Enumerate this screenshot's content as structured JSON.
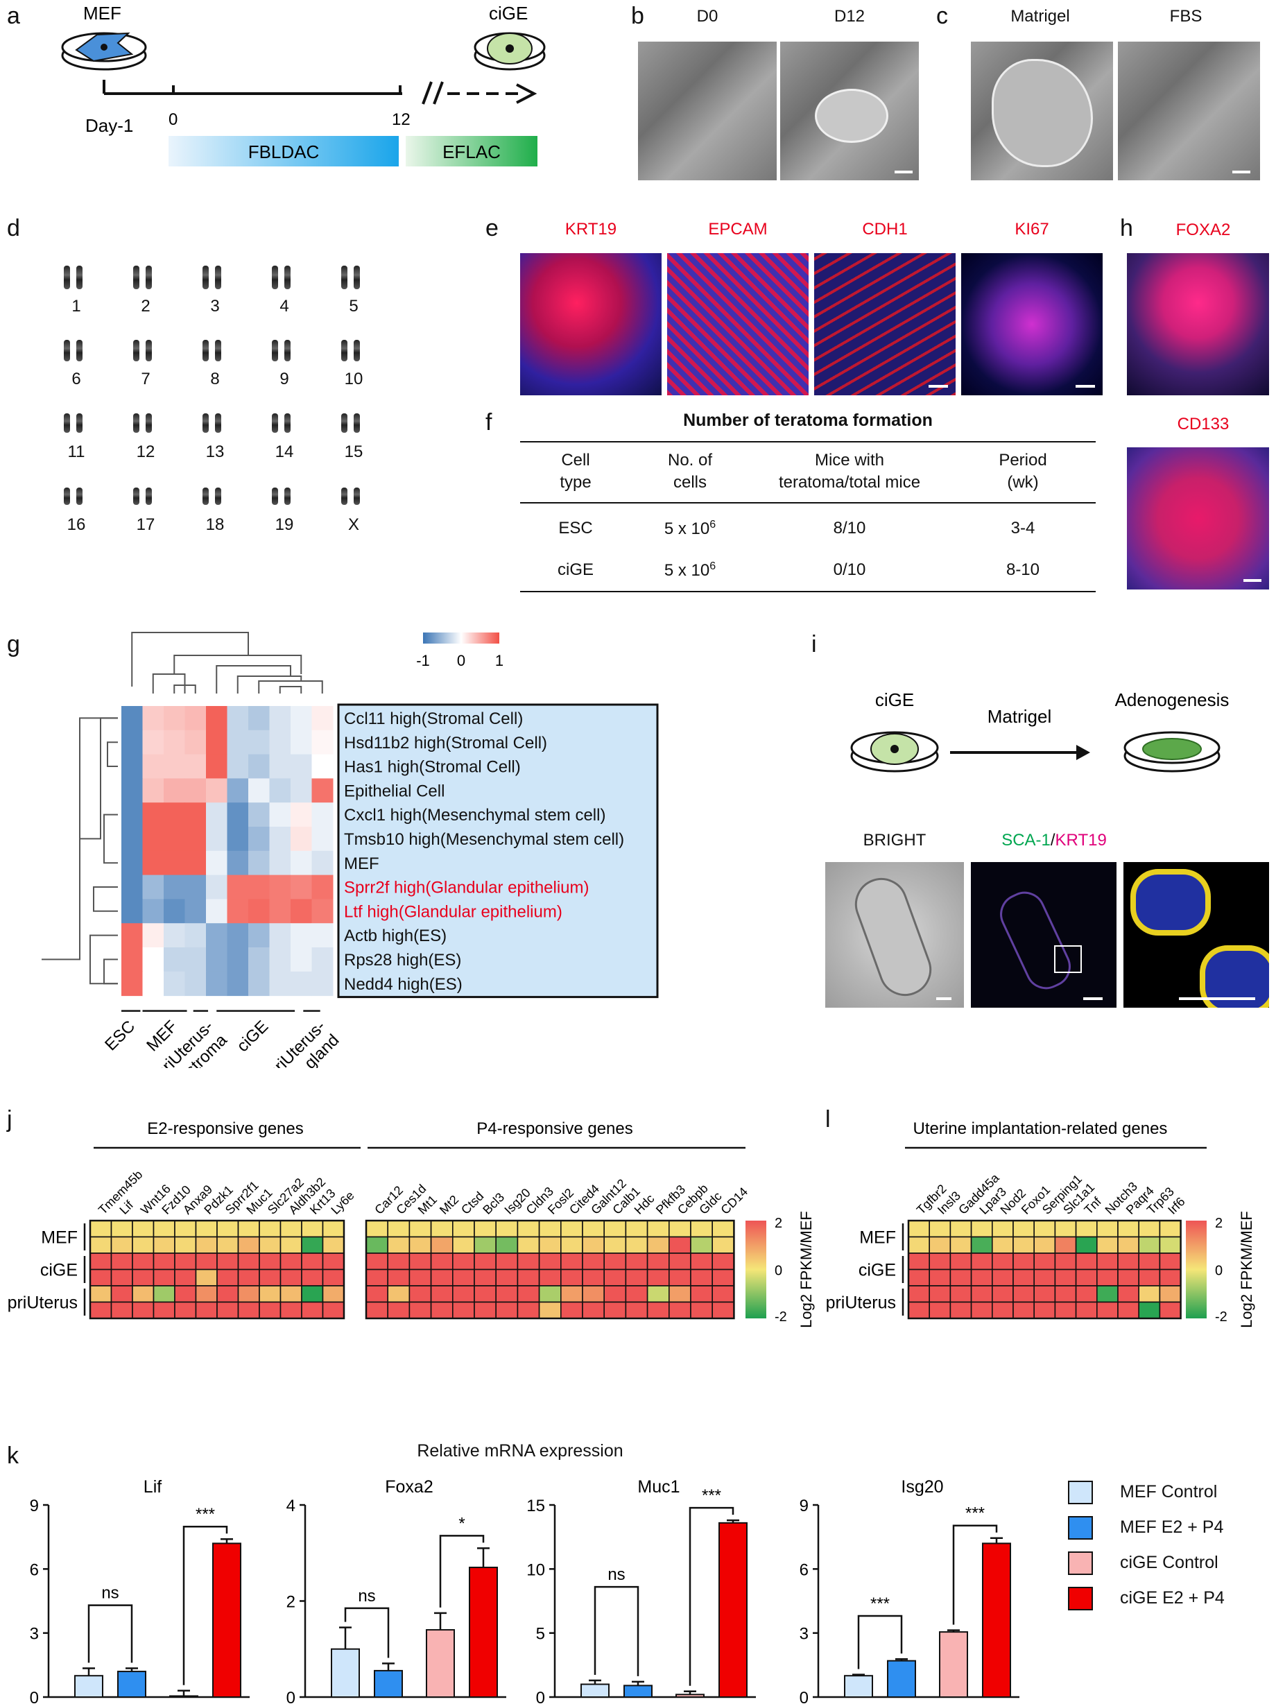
{
  "panels": {
    "a": {
      "label": "a",
      "mef": "MEF",
      "cige": "ciGE",
      "day_minus1": "Day-1",
      "day0": "0",
      "day12": "12",
      "stage1": "FBLDAC",
      "stage2": "EFLAC"
    },
    "b": {
      "label": "b",
      "d0": "D0",
      "d12": "D12"
    },
    "c": {
      "label": "c",
      "matrigel": "Matrigel",
      "fbs": "FBS"
    },
    "d": {
      "label": "d",
      "chromosomes": [
        "1",
        "2",
        "3",
        "4",
        "5",
        "6",
        "7",
        "8",
        "9",
        "10",
        "11",
        "12",
        "13",
        "14",
        "15",
        "16",
        "17",
        "18",
        "19",
        "X"
      ]
    },
    "e": {
      "label": "e",
      "markers": [
        "KRT19",
        "EPCAM",
        "CDH1",
        "KI67"
      ]
    },
    "f": {
      "label": "f",
      "title": "Number of teratoma formation",
      "headers": [
        [
          "Cell",
          "type"
        ],
        [
          "No. of",
          "cells"
        ],
        [
          "Mice with",
          "teratoma/total mice"
        ],
        [
          "Period",
          "(wk)"
        ]
      ],
      "rows": [
        {
          "cell": "ESC",
          "cells_base": "5 x 10",
          "cells_exp": "6",
          "mice": "8/10",
          "period": "3-4"
        },
        {
          "cell": "ciGE",
          "cells_base": "5 x 10",
          "cells_exp": "6",
          "mice": "0/10",
          "period": "8-10"
        }
      ]
    },
    "g": {
      "label": "g",
      "legend_ticks": [
        "-1",
        "0",
        "1"
      ],
      "row_labels": [
        {
          "text": "Ccl11 high(Stromal Cell)",
          "color": "#111111"
        },
        {
          "text": "Hsd11b2 high(Stromal Cell)",
          "color": "#111111"
        },
        {
          "text": "Has1 high(Stromal Cell)",
          "color": "#111111"
        },
        {
          "text": "Epithelial Cell",
          "color": "#111111"
        },
        {
          "text": "Cxcl1 high(Mesenchymal stem cell)",
          "color": "#111111"
        },
        {
          "text": "Tmsb10 high(Mesenchymal stem cell)",
          "color": "#111111"
        },
        {
          "text": "MEF",
          "color": "#111111"
        },
        {
          "text": "Sprr2f high(Glandular epithelium)",
          "color": "#e8001c"
        },
        {
          "text": "Ltf high(Glandular epithelium)",
          "color": "#e8001c"
        },
        {
          "text": "Actb high(ES)",
          "color": "#111111"
        },
        {
          "text": "Rps28 high(ES)",
          "color": "#111111"
        },
        {
          "text": "Nedd4 high(ES)",
          "color": "#111111"
        }
      ],
      "col_groups": [
        "ESC",
        "MEF",
        "priUterus-\nstroma",
        "ciGE",
        "priUterus-\ngland"
      ],
      "matrix": [
        [
          -0.85,
          0.3,
          0.35,
          0.4,
          0.9,
          -0.3,
          -0.4,
          -0.2,
          -0.1,
          0.1
        ],
        [
          -0.85,
          0.25,
          0.3,
          0.35,
          0.9,
          -0.3,
          -0.3,
          -0.2,
          -0.1,
          0.05
        ],
        [
          -0.85,
          0.3,
          0.3,
          0.3,
          0.9,
          -0.3,
          -0.4,
          -0.2,
          -0.2,
          0.0
        ],
        [
          -0.85,
          0.35,
          0.45,
          0.45,
          0.35,
          -0.6,
          -0.1,
          -0.3,
          -0.2,
          0.8
        ],
        [
          -0.85,
          0.9,
          0.9,
          0.9,
          -0.2,
          -0.8,
          -0.4,
          -0.1,
          0.1,
          -0.1
        ],
        [
          -0.85,
          0.9,
          0.9,
          0.9,
          -0.2,
          -0.8,
          -0.5,
          -0.2,
          0.15,
          -0.1
        ],
        [
          -0.85,
          0.9,
          0.9,
          0.9,
          -0.1,
          -0.7,
          -0.4,
          -0.2,
          -0.1,
          -0.2
        ],
        [
          -0.85,
          -0.5,
          -0.7,
          -0.7,
          -0.2,
          0.8,
          0.8,
          0.75,
          0.7,
          0.8
        ],
        [
          -0.85,
          -0.6,
          -0.8,
          -0.7,
          -0.1,
          0.8,
          0.85,
          0.75,
          0.85,
          0.75
        ],
        [
          0.85,
          0.1,
          -0.2,
          -0.25,
          -0.6,
          -0.7,
          -0.5,
          -0.2,
          -0.1,
          -0.1
        ],
        [
          0.85,
          0.0,
          -0.3,
          -0.3,
          -0.6,
          -0.7,
          -0.4,
          -0.2,
          -0.1,
          -0.2
        ],
        [
          0.85,
          0.0,
          -0.25,
          -0.3,
          -0.6,
          -0.7,
          -0.4,
          -0.2,
          -0.2,
          -0.2
        ]
      ]
    },
    "h": {
      "label": "h",
      "marker1": "FOXA2",
      "marker2": "CD133"
    },
    "i": {
      "label": "i",
      "cige": "ciGE",
      "arrow": "Matrigel",
      "adeno": "Adenogenesis",
      "bright": "BRIGHT",
      "sca1": "SCA-1",
      "slash": "/",
      "krt19": "KRT19"
    },
    "j": {
      "label": "j",
      "group1": "E2-responsive genes",
      "group2": "P4-responsive genes",
      "genes1": [
        "Tmem45b",
        "Lif",
        "Wnt16",
        "Fzd10",
        "Anxa9",
        "Pdzk1",
        "Sprr2f1",
        "Muc1",
        "Slc27a2",
        "Aldh3b2",
        "Krt13",
        "Ly6e"
      ],
      "genes2": [
        "Car12",
        "Ces1d",
        "Mt1",
        "Mt2",
        "Ctsd",
        "Bcl3",
        "Isg20",
        "Cldn3",
        "Fosl2",
        "Cited4",
        "Galnt12",
        "Calb1",
        "Hdc",
        "Pfkfb3",
        "Cebpb",
        "Gldc",
        "CD14"
      ],
      "rows": [
        "MEF",
        "ciGE",
        "priUterus"
      ],
      "m1": [
        [
          0.1,
          0.1,
          0.1,
          0.1,
          0.1,
          0.1,
          0.1,
          0.1,
          0.1,
          0.1,
          0.1,
          0.1
        ],
        [
          0.2,
          0.3,
          0.2,
          0.3,
          0.2,
          0.4,
          0.3,
          0.7,
          0.3,
          0.2,
          -1.8,
          0.3
        ],
        [
          2,
          2,
          2,
          2,
          2,
          2,
          2,
          2,
          2,
          2,
          2,
          2
        ],
        [
          2,
          2,
          2,
          2,
          2,
          0.5,
          2,
          2,
          2,
          2,
          2,
          2
        ],
        [
          0.5,
          2,
          0.6,
          -0.8,
          2,
          1.2,
          2,
          1.2,
          0.5,
          0.6,
          -1.9,
          0.8
        ],
        [
          2,
          2,
          2,
          2,
          2,
          2,
          2,
          2,
          2,
          2,
          2,
          2
        ]
      ],
      "m2": [
        [
          0.1,
          0.1,
          0.1,
          0.1,
          0.1,
          0.1,
          0.1,
          0.1,
          0.1,
          0.1,
          0.1,
          0.1,
          0.1,
          0.1,
          0.1,
          0.1,
          0.1
        ],
        [
          -1.3,
          0.3,
          0.4,
          0.9,
          0.2,
          -0.8,
          -1.2,
          0.2,
          0.3,
          0.2,
          0.4,
          0.2,
          0.2,
          0.5,
          2,
          -0.6,
          0.2
        ],
        [
          2,
          2,
          2,
          2,
          2,
          2,
          2,
          2,
          2,
          2,
          2,
          2,
          2,
          2,
          2,
          2,
          2
        ],
        [
          2,
          2,
          2,
          2,
          2,
          2,
          2,
          2,
          2,
          2,
          2,
          2,
          2,
          2,
          2,
          2,
          2
        ],
        [
          2,
          0.5,
          2,
          2,
          2,
          2,
          2,
          2,
          -0.7,
          1.0,
          1.2,
          2,
          2,
          -0.4,
          1.0,
          2,
          2
        ],
        [
          2,
          2,
          2,
          2,
          2,
          2,
          2,
          2,
          0.5,
          2,
          2,
          2,
          2,
          2,
          2,
          2,
          2
        ]
      ],
      "scale_ticks": [
        "2",
        "0",
        "-2"
      ],
      "scale_title": "Log2 FPKM/MEF"
    },
    "l": {
      "label": "l",
      "group": "Uterine implantation-related genes",
      "genes": [
        "Tgfbr2",
        "Insl3",
        "Gadd45a",
        "Lpar3",
        "Nod2",
        "Foxo1",
        "Serping1",
        "Slc1a1",
        "Tnf",
        "Notch3",
        "Paqr4",
        "Trp63",
        "Irf6"
      ],
      "rows": [
        "MEF",
        "ciGE",
        "priUterus"
      ],
      "m": [
        [
          0.1,
          0.1,
          0.1,
          0.1,
          0.1,
          0.1,
          0.1,
          0.1,
          0.1,
          0.1,
          0.1,
          0.1,
          0.1
        ],
        [
          0.2,
          0.4,
          0.3,
          -1.6,
          0.3,
          0.3,
          0.4,
          1.4,
          -1.9,
          0.3,
          0.4,
          -0.5,
          -0.3
        ],
        [
          2,
          2,
          2,
          2,
          2,
          2,
          2,
          2,
          2,
          2,
          2,
          2,
          2
        ],
        [
          2,
          2,
          2,
          2,
          2,
          2,
          2,
          2,
          2,
          2,
          2,
          2,
          2
        ],
        [
          2,
          2,
          2,
          2,
          2,
          2,
          2,
          2,
          2,
          -1.7,
          2,
          0.3,
          0.8
        ],
        [
          2,
          2,
          2,
          2,
          2,
          2,
          2,
          2,
          2,
          2,
          2,
          -1.9,
          2
        ]
      ],
      "scale_ticks": [
        "2",
        "0",
        "-2"
      ],
      "scale_title": "Log2 FPKM/MEF"
    },
    "k": {
      "label": "k",
      "title": "Relative mRNA expression",
      "legend": [
        {
          "name": "MEF Control",
          "color": "#cfe6fb"
        },
        {
          "name": "MEF E2 + P4",
          "color": "#2f8ff0"
        },
        {
          "name": "ciGE Control",
          "color": "#f9b3b3"
        },
        {
          "name": "ciGE E2 + P4",
          "color": "#f00000"
        }
      ]
    }
  },
  "chart_data": [
    {
      "type": "bar",
      "title": "Lif",
      "ylim": [
        0,
        9
      ],
      "yticks": [
        "0",
        "3",
        "6",
        "9"
      ],
      "categories": [
        "MEF Control",
        "MEF E2 + P4",
        "ciGE Control",
        "ciGE E2 + P4"
      ],
      "values": [
        1.0,
        1.2,
        0.05,
        7.2
      ],
      "errors": [
        0.35,
        0.15,
        0.25,
        0.2
      ],
      "sig": [
        {
          "from": 0,
          "to": 1,
          "label": "ns"
        },
        {
          "from": 2,
          "to": 3,
          "label": "***"
        }
      ]
    },
    {
      "type": "bar",
      "title": "Foxa2",
      "ylim": [
        0,
        4
      ],
      "yticks": [
        "0",
        "2",
        "4"
      ],
      "categories": [
        "MEF Control",
        "MEF E2 + P4",
        "ciGE Control",
        "ciGE E2 + P4"
      ],
      "values": [
        1.0,
        0.55,
        1.4,
        2.7
      ],
      "errors": [
        0.45,
        0.15,
        0.35,
        0.4
      ],
      "sig": [
        {
          "from": 0,
          "to": 1,
          "label": "ns"
        },
        {
          "from": 2,
          "to": 3,
          "label": "*"
        }
      ]
    },
    {
      "type": "bar",
      "title": "Muc1",
      "ylim": [
        0,
        15
      ],
      "yticks": [
        "0",
        "5",
        "10",
        "15"
      ],
      "categories": [
        "MEF Control",
        "MEF E2 + P4",
        "ciGE Control",
        "ciGE E2 + P4"
      ],
      "values": [
        1.0,
        0.9,
        0.2,
        13.6
      ],
      "errors": [
        0.3,
        0.3,
        0.25,
        0.2
      ],
      "sig": [
        {
          "from": 0,
          "to": 1,
          "label": "ns"
        },
        {
          "from": 2,
          "to": 3,
          "label": "***"
        }
      ]
    },
    {
      "type": "bar",
      "title": "Isg20",
      "ylim": [
        0,
        9
      ],
      "yticks": [
        "0",
        "3",
        "6",
        "9"
      ],
      "categories": [
        "MEF Control",
        "MEF E2 + P4",
        "ciGE Control",
        "ciGE E2 + P4"
      ],
      "values": [
        1.0,
        1.7,
        3.05,
        7.2
      ],
      "errors": [
        0.05,
        0.08,
        0.08,
        0.25
      ],
      "sig": [
        {
          "from": 0,
          "to": 1,
          "label": "***"
        },
        {
          "from": 2,
          "to": 3,
          "label": "***"
        }
      ]
    }
  ]
}
